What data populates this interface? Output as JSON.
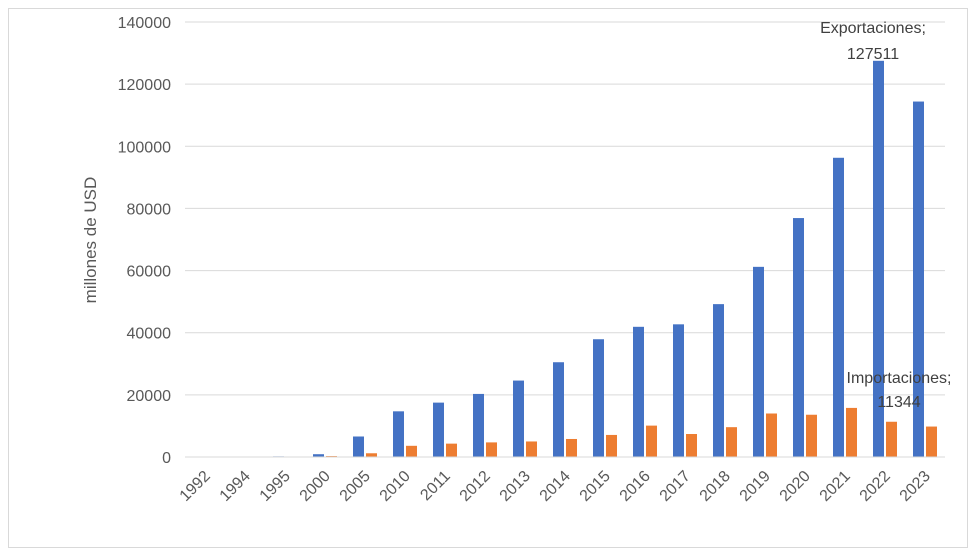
{
  "chart_data": {
    "type": "bar",
    "ylabel": "millones de USD",
    "xlabel": "",
    "ylim": [
      0,
      140000
    ],
    "yticks": [
      0,
      20000,
      40000,
      60000,
      80000,
      100000,
      120000,
      140000
    ],
    "grid": true,
    "categories": [
      "1992",
      "1994",
      "1995",
      "2000",
      "2005",
      "2010",
      "2011",
      "2012",
      "2013",
      "2014",
      "2015",
      "2016",
      "2017",
      "2018",
      "2019",
      "2020",
      "2021",
      "2022",
      "2023"
    ],
    "series": [
      {
        "color": "#4472c4",
        "values": [
          30,
          100,
          200,
          900,
          6600,
          14700,
          17500,
          20300,
          24600,
          30500,
          37900,
          41900,
          42700,
          49200,
          61200,
          76900,
          96300,
          127511,
          114400
        ]
      },
      {
        "color": "#ed7d31",
        "values": [
          20,
          50,
          100,
          300,
          1200,
          3600,
          4300,
          4700,
          5000,
          5800,
          7100,
          10100,
          7400,
          9600,
          14000,
          13600,
          15800,
          11344,
          9800
        ]
      }
    ],
    "annotations": [
      {
        "line1": "Exportaciones;",
        "line2": "127511"
      },
      {
        "line1": "Importaciones;",
        "line2": "11344"
      }
    ]
  }
}
